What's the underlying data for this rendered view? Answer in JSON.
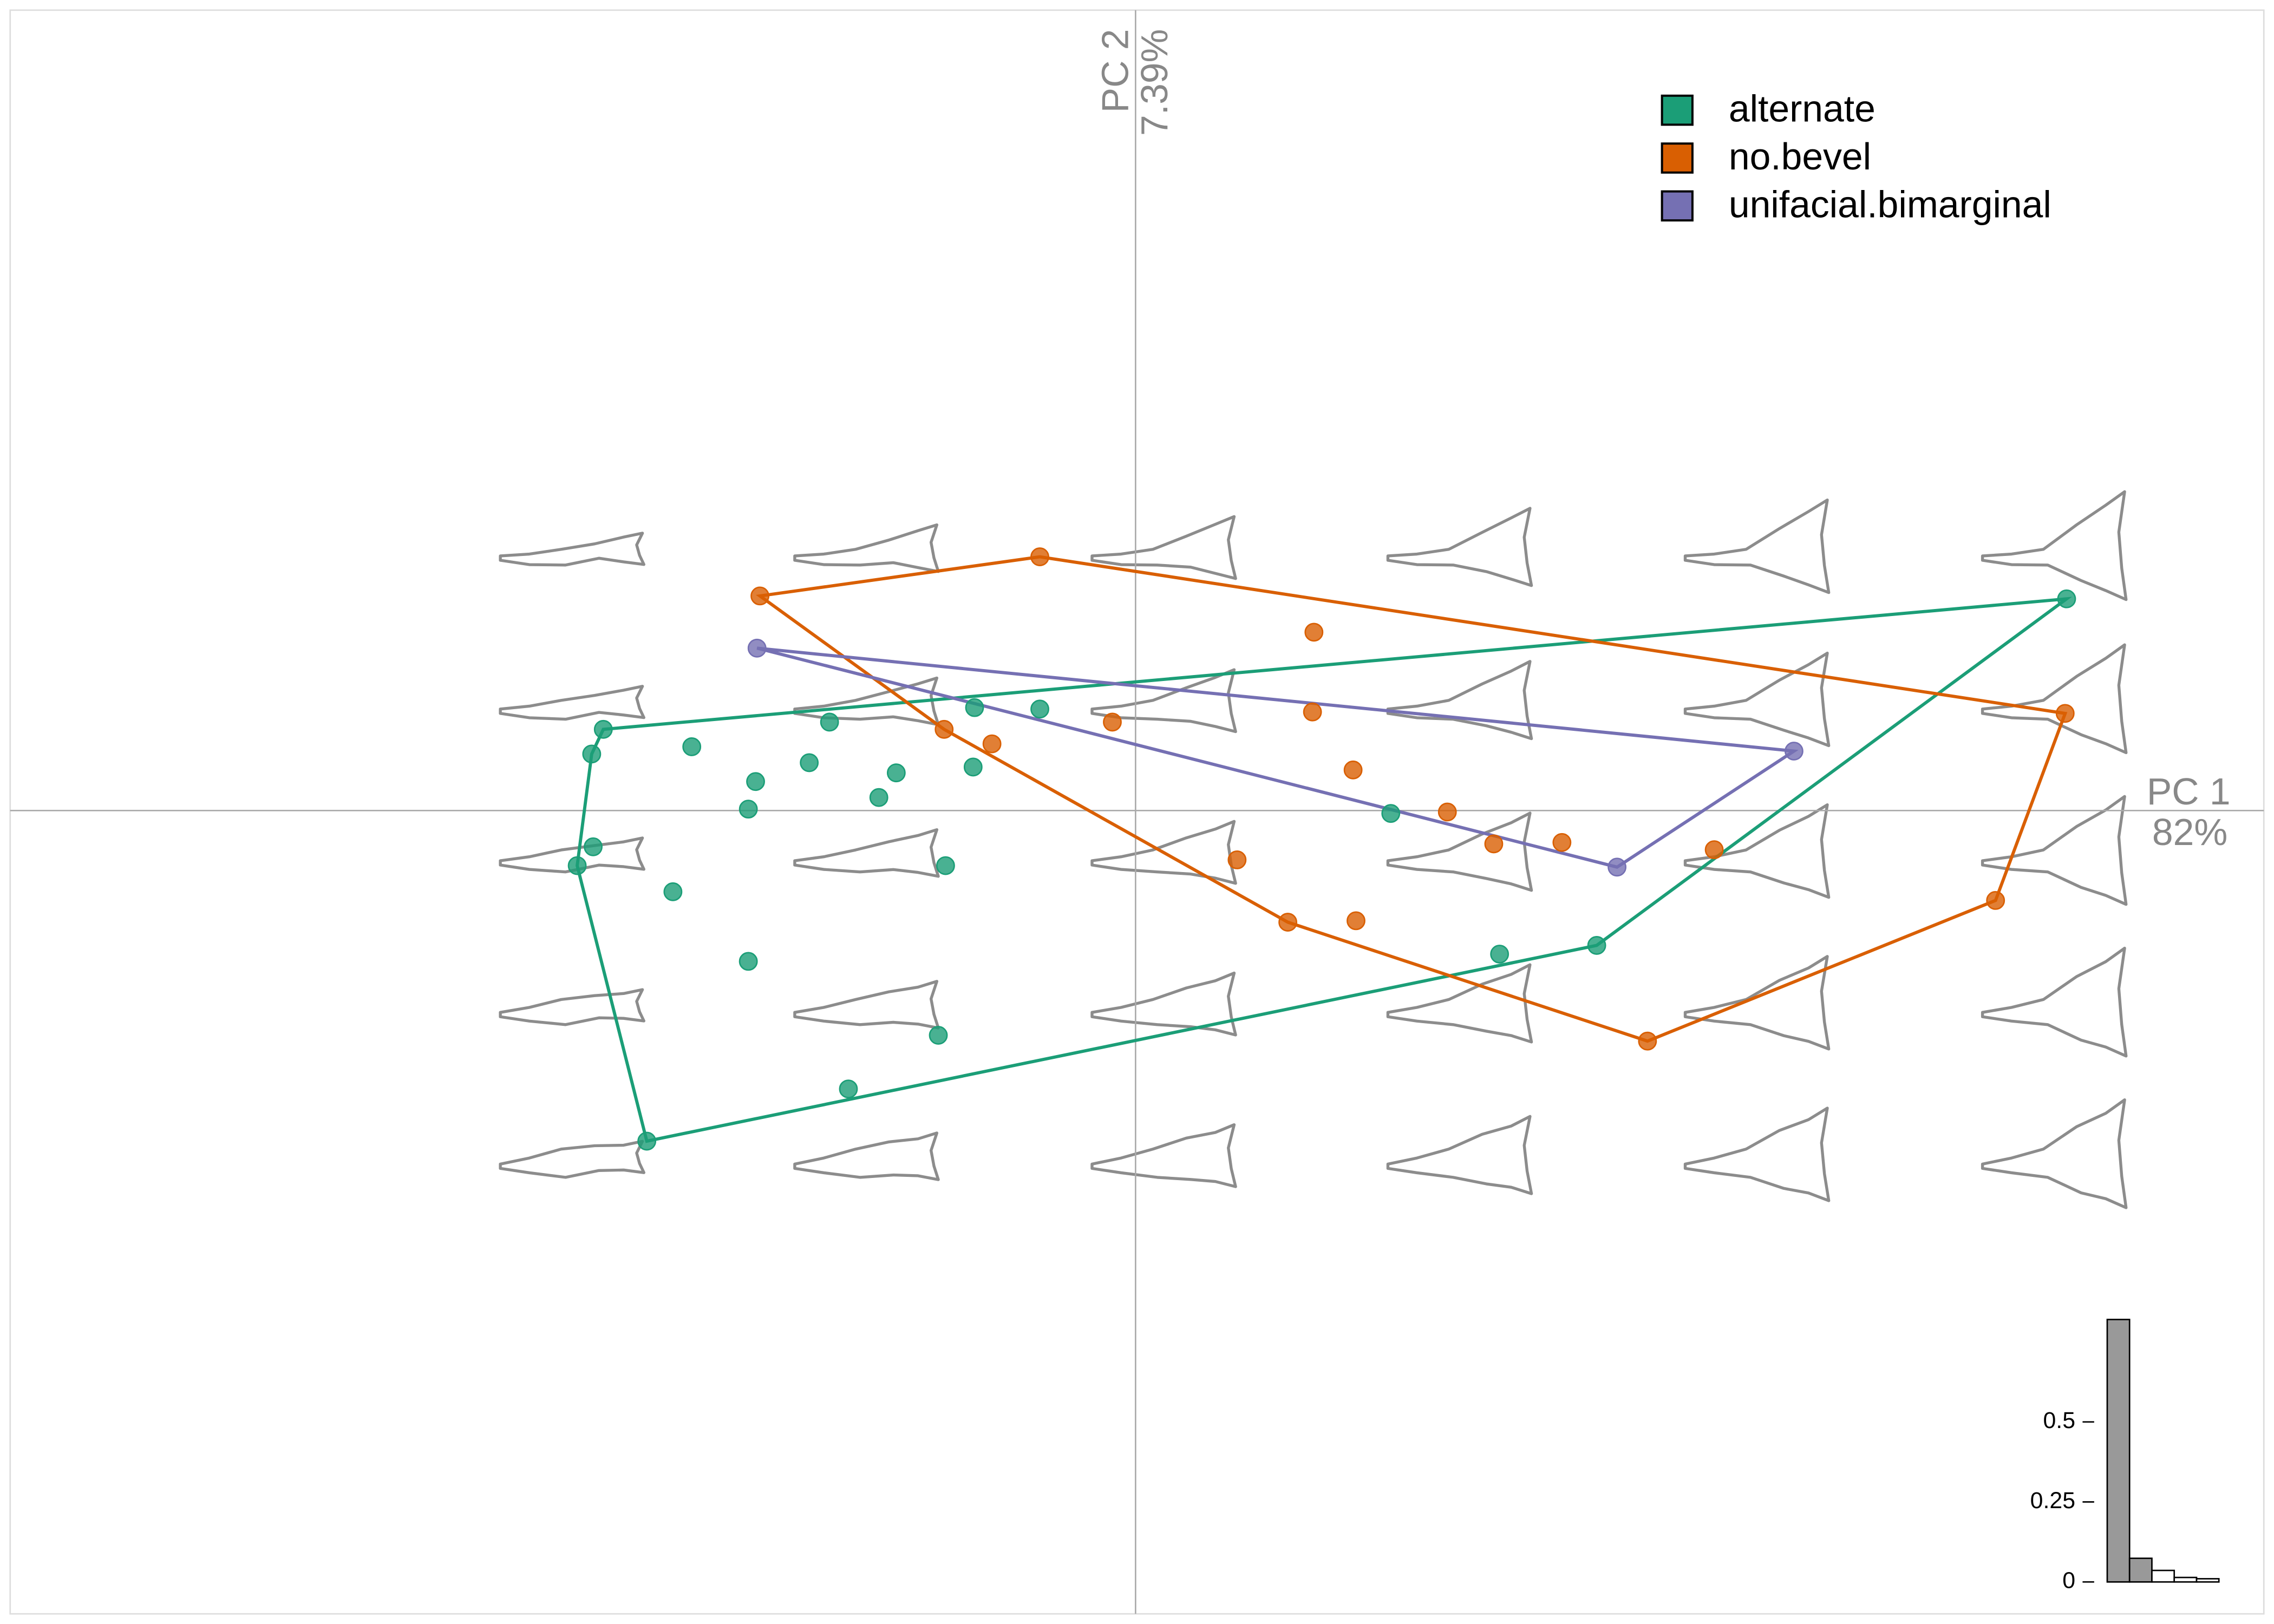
{
  "chart_data": [
    {
      "type": "scatter",
      "x_label": "PC 1",
      "x_label_variance": "82%",
      "y_label": "PC 2",
      "y_label_variance": "7.39%",
      "xlim": [
        -0.776,
        0.778
      ],
      "ylim": [
        -0.554,
        0.552
      ],
      "convex_hulls": true,
      "legend": "top-right",
      "series": [
        {
          "name": "alternate",
          "color": "#1b9e77",
          "x": [
            -0.367,
            -0.375,
            -0.306,
            -0.211,
            -0.111,
            -0.066,
            -0.262,
            -0.225,
            -0.165,
            -0.177,
            -0.267,
            -0.112,
            -0.374,
            -0.385,
            -0.131,
            -0.319,
            -0.267,
            -0.136,
            -0.198,
            -0.337,
            0.176,
            0.251,
            0.318,
            0.642
          ],
          "values": [
            0.056,
            0.039,
            0.044,
            0.061,
            0.071,
            0.07,
            0.02,
            0.033,
            0.026,
            0.009,
            0.001,
            0.03,
            -0.025,
            -0.038,
            -0.038,
            -0.056,
            -0.104,
            -0.155,
            -0.192,
            -0.228,
            -0.002,
            -0.099,
            -0.093,
            0.146
          ]
        },
        {
          "name": "no.bevel",
          "color": "#d95f02",
          "x": [
            -0.259,
            -0.066,
            0.123,
            0.122,
            -0.016,
            -0.132,
            -0.099,
            0.15,
            0.215,
            0.247,
            0.294,
            0.399,
            0.07,
            0.105,
            0.152,
            0.353,
            0.593,
            0.641
          ],
          "values": [
            0.148,
            0.175,
            0.123,
            0.068,
            0.061,
            0.056,
            0.046,
            0.028,
            -0.001,
            -0.023,
            -0.022,
            -0.027,
            -0.034,
            -0.077,
            -0.076,
            -0.159,
            -0.062,
            0.067
          ]
        },
        {
          "name": "unifacial.bimarginal",
          "color": "#7570b3",
          "x": [
            -0.261,
            0.454,
            0.332
          ],
          "values": [
            0.112,
            0.041,
            -0.039
          ]
        }
      ]
    },
    {
      "type": "bar",
      "values": [
        0.82,
        0.0739,
        0.036,
        0.014,
        0.01
      ],
      "ylim": [
        0,
        0.82
      ],
      "yticks": [
        0,
        0.25,
        0.5
      ],
      "highlighted_bars": 2,
      "color": "#999999"
    }
  ]
}
